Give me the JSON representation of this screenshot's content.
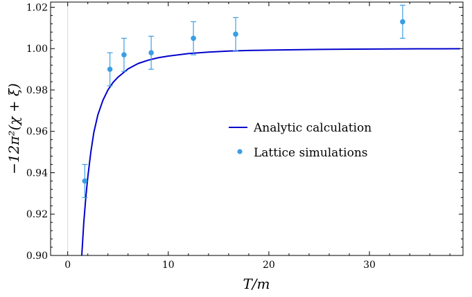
{
  "chart_data": {
    "type": "line",
    "title": "",
    "xlabel": "T/m",
    "ylabel": "−12π²(χ + ξ)",
    "xlim": [
      -1.7,
      39.3
    ],
    "ylim": [
      0.9,
      1.0225
    ],
    "xticks": [
      0,
      10,
      20,
      30
    ],
    "xtick_labels": [
      "0",
      "10",
      "20",
      "30"
    ],
    "yticks": [
      0.9,
      0.92,
      0.94,
      0.96,
      0.98,
      1.0,
      1.02
    ],
    "ytick_labels": [
      "0.90",
      "0.92",
      "0.94",
      "0.96",
      "0.98",
      "1.00",
      "1.02"
    ],
    "grid": false,
    "legend_position": "center-right",
    "series": [
      {
        "name": "Analytic calculation",
        "kind": "line",
        "color": "#0000cc",
        "x": [
          1.4,
          1.6,
          1.8,
          2.0,
          2.3,
          2.6,
          3.0,
          3.5,
          4.0,
          4.5,
          5.0,
          6.0,
          7.0,
          8.0,
          9.0,
          10.0,
          12.0,
          14.0,
          16.0,
          18.0,
          20.0,
          25.0,
          30.0,
          35.0,
          39.0
        ],
        "y": [
          0.899,
          0.916,
          0.928,
          0.938,
          0.95,
          0.9595,
          0.968,
          0.975,
          0.98,
          0.9836,
          0.9862,
          0.9902,
          0.9928,
          0.9944,
          0.9956,
          0.9964,
          0.9976,
          0.9983,
          0.9988,
          0.9991,
          0.9993,
          0.9996,
          0.9998,
          0.9999,
          0.99995
        ]
      },
      {
        "name": "Lattice simulations",
        "kind": "errorbar",
        "color": "#3a9ee4",
        "x": [
          1.7,
          4.2,
          5.6,
          8.3,
          12.5,
          16.7,
          33.3
        ],
        "y": [
          0.936,
          0.99,
          0.997,
          0.998,
          1.005,
          1.007,
          1.013
        ],
        "yerr": [
          0.008,
          0.008,
          0.008,
          0.008,
          0.008,
          0.008,
          0.008
        ]
      }
    ]
  }
}
